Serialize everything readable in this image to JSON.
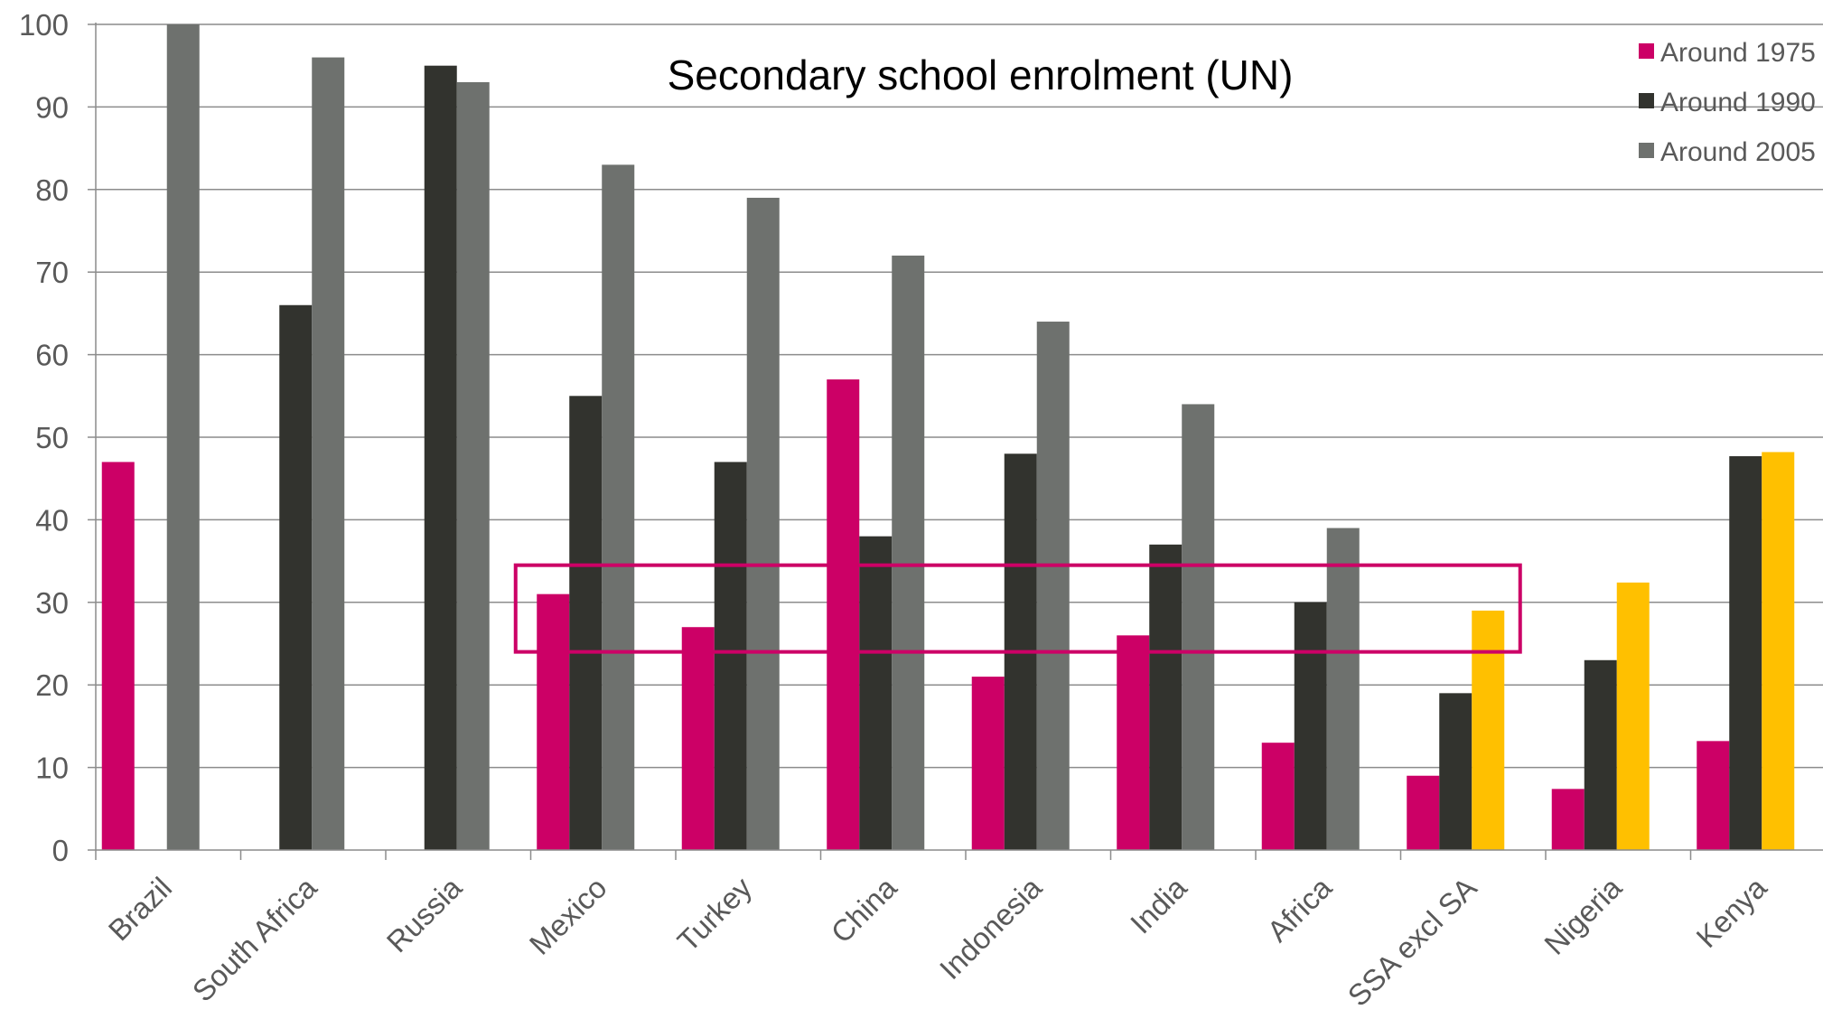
{
  "chart_data": {
    "type": "bar",
    "title": "Secondary school enrolment (UN)",
    "categories": [
      "Brazil",
      "South Africa",
      "Russia",
      "Mexico",
      "Turkey",
      "China",
      "Indonesia",
      "India",
      "Africa",
      "SSA excl SA",
      "Nigeria",
      "Kenya"
    ],
    "series": [
      {
        "name": "Around 1975",
        "color": "#cc0066",
        "values": [
          47,
          null,
          null,
          31,
          27,
          57,
          21,
          26,
          13,
          9,
          7.4,
          13.2
        ]
      },
      {
        "name": "Around 1990",
        "color": "#32332e",
        "values": [
          null,
          66,
          95,
          55,
          47,
          38,
          48,
          37,
          30,
          19,
          23,
          47.7
        ]
      },
      {
        "name": "Around 2005",
        "color": "#6e716e",
        "highlight_color": "#ffc000",
        "highlight_categories": [
          "SSA excl SA",
          "Nigeria",
          "Kenya"
        ],
        "values": [
          100,
          96,
          93,
          83,
          79,
          72,
          64,
          54,
          39,
          29,
          32.4,
          48.2
        ]
      }
    ],
    "yticks": [
      0,
      10,
      20,
      30,
      40,
      50,
      60,
      70,
      80,
      90,
      100
    ],
    "ylim": [
      0,
      100
    ],
    "grid": true,
    "legend_position": "top-right",
    "annotation": {
      "type": "rectangle",
      "color": "#cc0066",
      "y_range": [
        24,
        34.5
      ],
      "from_category": "Mexico",
      "to_category": "SSA excl SA"
    }
  }
}
